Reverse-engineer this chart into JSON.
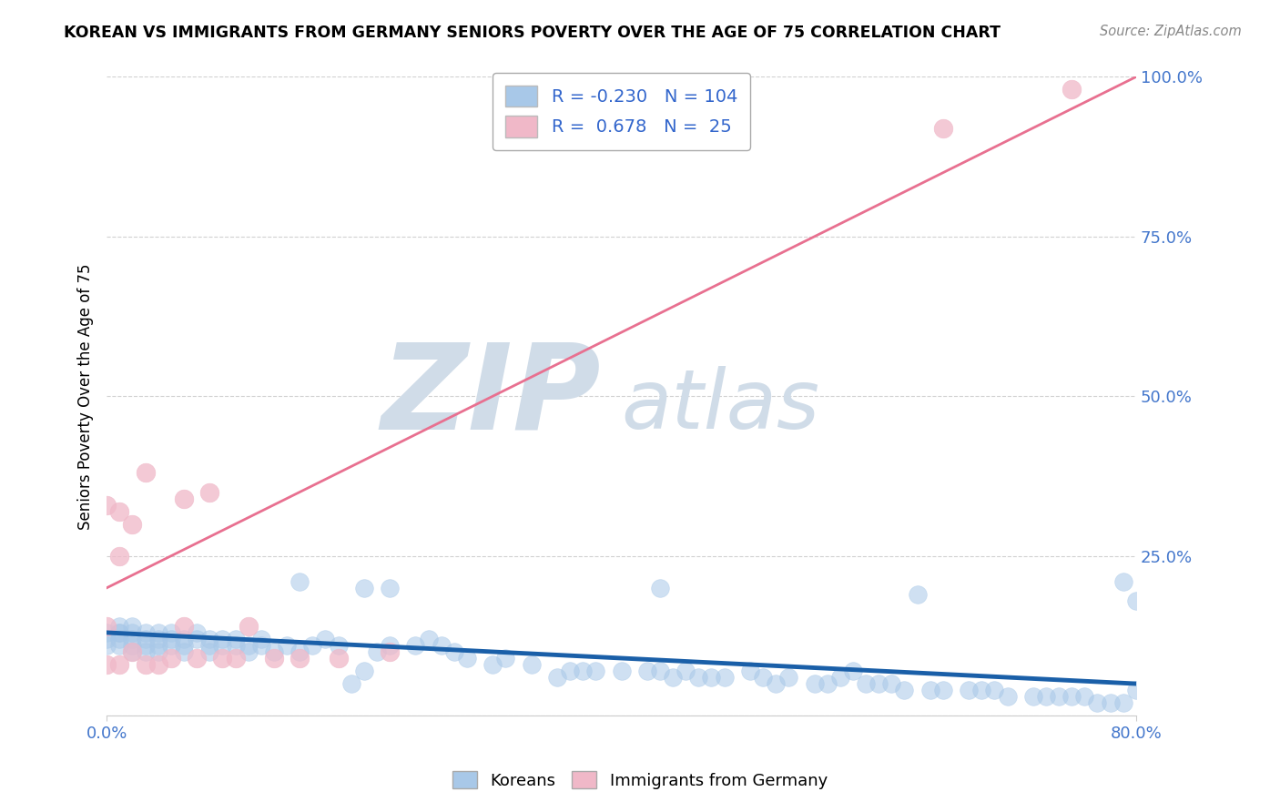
{
  "title": "KOREAN VS IMMIGRANTS FROM GERMANY SENIORS POVERTY OVER THE AGE OF 75 CORRELATION CHART",
  "source": "Source: ZipAtlas.com",
  "ylabel": "Seniors Poverty Over the Age of 75",
  "xlim": [
    0.0,
    0.8
  ],
  "ylim": [
    0.0,
    1.0
  ],
  "legend_R1": "-0.230",
  "legend_N1": "104",
  "legend_R2": "0.678",
  "legend_N2": "25",
  "blue_color": "#a8c8e8",
  "pink_color": "#f0b8c8",
  "line_blue": "#1a5fa8",
  "line_pink": "#e87090",
  "watermark_zip": "ZIP",
  "watermark_atlas": "atlas",
  "watermark_color": "#d0dce8",
  "blue_line_x0": 0.0,
  "blue_line_y0": 0.13,
  "blue_line_x1": 0.8,
  "blue_line_y1": 0.05,
  "pink_line_x0": 0.0,
  "pink_line_y0": 0.2,
  "pink_line_x1": 0.8,
  "pink_line_y1": 1.0,
  "koreans_x": [
    0.0,
    0.0,
    0.0,
    0.01,
    0.01,
    0.01,
    0.01,
    0.01,
    0.02,
    0.02,
    0.02,
    0.02,
    0.02,
    0.03,
    0.03,
    0.03,
    0.03,
    0.04,
    0.04,
    0.04,
    0.04,
    0.05,
    0.05,
    0.05,
    0.06,
    0.06,
    0.06,
    0.07,
    0.07,
    0.08,
    0.08,
    0.08,
    0.09,
    0.09,
    0.1,
    0.1,
    0.11,
    0.11,
    0.12,
    0.12,
    0.13,
    0.14,
    0.15,
    0.15,
    0.16,
    0.17,
    0.18,
    0.19,
    0.2,
    0.2,
    0.21,
    0.22,
    0.24,
    0.25,
    0.26,
    0.27,
    0.28,
    0.3,
    0.31,
    0.33,
    0.35,
    0.36,
    0.37,
    0.38,
    0.4,
    0.42,
    0.43,
    0.44,
    0.45,
    0.46,
    0.47,
    0.48,
    0.5,
    0.51,
    0.52,
    0.53,
    0.55,
    0.56,
    0.57,
    0.59,
    0.6,
    0.61,
    0.62,
    0.63,
    0.64,
    0.65,
    0.67,
    0.68,
    0.69,
    0.7,
    0.72,
    0.73,
    0.74,
    0.75,
    0.76,
    0.77,
    0.78,
    0.79,
    0.79,
    0.8,
    0.8,
    0.58,
    0.43,
    0.22
  ],
  "koreans_y": [
    0.13,
    0.12,
    0.11,
    0.14,
    0.13,
    0.12,
    0.11,
    0.13,
    0.13,
    0.12,
    0.11,
    0.1,
    0.14,
    0.13,
    0.12,
    0.11,
    0.1,
    0.13,
    0.12,
    0.11,
    0.1,
    0.13,
    0.12,
    0.11,
    0.12,
    0.11,
    0.1,
    0.13,
    0.12,
    0.12,
    0.11,
    0.1,
    0.11,
    0.12,
    0.12,
    0.11,
    0.11,
    0.1,
    0.12,
    0.11,
    0.1,
    0.11,
    0.21,
    0.1,
    0.11,
    0.12,
    0.11,
    0.05,
    0.07,
    0.2,
    0.1,
    0.11,
    0.11,
    0.12,
    0.11,
    0.1,
    0.09,
    0.08,
    0.09,
    0.08,
    0.06,
    0.07,
    0.07,
    0.07,
    0.07,
    0.07,
    0.07,
    0.06,
    0.07,
    0.06,
    0.06,
    0.06,
    0.07,
    0.06,
    0.05,
    0.06,
    0.05,
    0.05,
    0.06,
    0.05,
    0.05,
    0.05,
    0.04,
    0.19,
    0.04,
    0.04,
    0.04,
    0.04,
    0.04,
    0.03,
    0.03,
    0.03,
    0.03,
    0.03,
    0.03,
    0.02,
    0.02,
    0.02,
    0.21,
    0.04,
    0.18,
    0.07,
    0.2,
    0.2
  ],
  "germany_x": [
    0.0,
    0.0,
    0.0,
    0.01,
    0.01,
    0.01,
    0.02,
    0.02,
    0.03,
    0.03,
    0.04,
    0.05,
    0.06,
    0.06,
    0.07,
    0.08,
    0.09,
    0.1,
    0.11,
    0.13,
    0.15,
    0.18,
    0.22,
    0.65,
    0.75
  ],
  "germany_y": [
    0.08,
    0.14,
    0.33,
    0.08,
    0.25,
    0.32,
    0.1,
    0.3,
    0.08,
    0.38,
    0.08,
    0.09,
    0.14,
    0.34,
    0.09,
    0.35,
    0.09,
    0.09,
    0.14,
    0.09,
    0.09,
    0.09,
    0.1,
    0.92,
    0.98
  ]
}
